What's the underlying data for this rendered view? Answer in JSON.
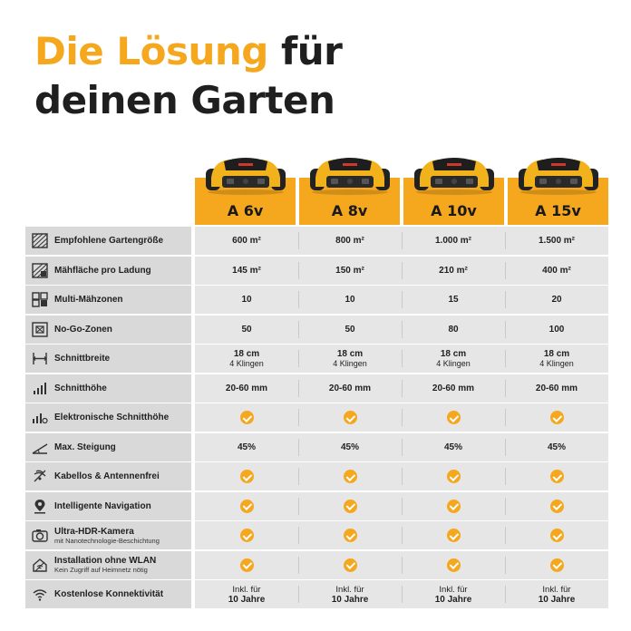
{
  "headline": {
    "line1_accent": "Die Lösung",
    "line1_rest": "für",
    "line2": "deinen Garten"
  },
  "colors": {
    "accent": "#f5a71e",
    "text": "#1f1f1f",
    "feature_bg": "#d9d9d9",
    "value_bg": "#e6e6e6"
  },
  "models": [
    {
      "name": "A 6v"
    },
    {
      "name": "A 8v"
    },
    {
      "name": "A 10v"
    },
    {
      "name": "A 15v"
    }
  ],
  "rows": [
    {
      "icon": "garden-area-icon",
      "label": "Empfohlene Gartengröße",
      "values": [
        "600 m²",
        "800 m²",
        "1.000 m²",
        "1.500 m²"
      ]
    },
    {
      "icon": "mowing-area-icon",
      "label": "Mähfläche pro Ladung",
      "values": [
        "145 m²",
        "150 m²",
        "210 m²",
        "400 m²"
      ]
    },
    {
      "icon": "multi-zone-icon",
      "label": "Multi-Mähzonen",
      "values": [
        "10",
        "10",
        "15",
        "20"
      ]
    },
    {
      "icon": "no-go-zone-icon",
      "label": "No-Go-Zonen",
      "values": [
        "50",
        "50",
        "80",
        "100"
      ]
    },
    {
      "icon": "cutting-width-icon",
      "label": "Schnittbreite",
      "values": [
        "18 cm",
        "18 cm",
        "18 cm",
        "18 cm"
      ],
      "subvalues": [
        "4 Klingen",
        "4 Klingen",
        "4 Klingen",
        "4 Klingen"
      ]
    },
    {
      "icon": "cutting-height-icon",
      "label": "Schnitthöhe",
      "values": [
        "20-60 mm",
        "20-60 mm",
        "20-60 mm",
        "20-60 mm"
      ]
    },
    {
      "icon": "electronic-height-icon",
      "label": "Elektronische Schnitthöhe",
      "check": true
    },
    {
      "icon": "slope-icon",
      "label": "Max. Steigung",
      "values": [
        "45%",
        "45%",
        "45%",
        "45%"
      ]
    },
    {
      "icon": "wireless-icon",
      "label": "Kabellos & Antennenfrei",
      "check": true
    },
    {
      "icon": "navigation-icon",
      "label": "Intelligente Navigation",
      "check": true
    },
    {
      "icon": "camera-icon",
      "label": "Ultra-HDR-Kamera",
      "sublabel": "mit Nanotechnologie-Beschichtung",
      "check": true
    },
    {
      "icon": "no-wlan-icon",
      "label": "Installation ohne WLAN",
      "sublabel": "Kein Zugriff auf Heimnetz nötig",
      "check": true
    },
    {
      "icon": "connectivity-icon",
      "label": "Kostenlose Konnektivität",
      "values_small": [
        "Inkl. für",
        "Inkl. für",
        "Inkl. für",
        "Inkl. für"
      ],
      "values": [
        "10 Jahre",
        "10 Jahre",
        "10 Jahre",
        "10 Jahre"
      ]
    }
  ]
}
